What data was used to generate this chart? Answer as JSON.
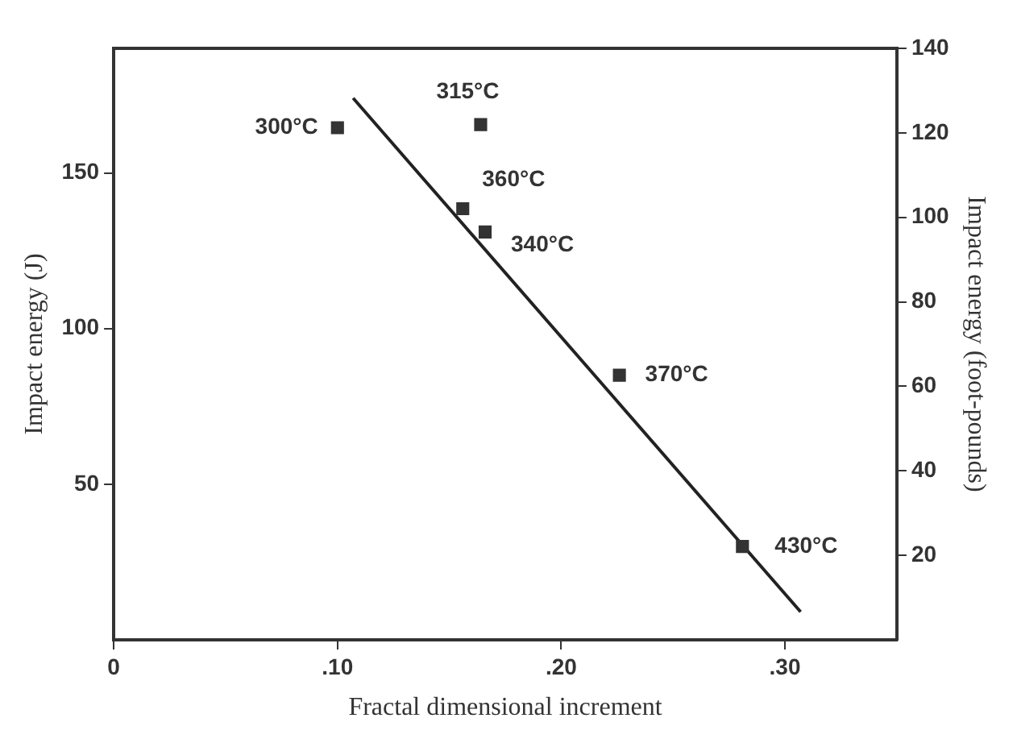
{
  "chart_data": {
    "type": "scatter",
    "xlabel": "Fractal dimensional increment",
    "ylabel": "Impact energy (J)",
    "y2label": "Impact energy (foot-pounds)",
    "series": [
      {
        "type": "scatter",
        "color": "#333333",
        "marker": "square",
        "x": [
          0.1,
          0.164,
          0.156,
          0.166,
          0.226,
          0.281
        ],
        "values": [
          164.5,
          165.5,
          138.5,
          131,
          85,
          30
        ]
      },
      {
        "type": "line",
        "color": "#222222",
        "marker": "none",
        "line_style": "solid",
        "x": [
          0.107,
          0.307
        ],
        "values": [
          174,
          9
        ]
      }
    ],
    "annotations": [
      {
        "text": "300°C",
        "x": 0.1,
        "y": 164.5
      },
      {
        "text": "315°C",
        "x": 0.164,
        "y": 165.5
      },
      {
        "text": "360°C",
        "x": 0.156,
        "y": 138.5
      },
      {
        "text": "340°C",
        "x": 0.166,
        "y": 131
      },
      {
        "text": "370°C",
        "x": 0.226,
        "y": 85
      },
      {
        "text": "430°C",
        "x": 0.281,
        "y": 30
      }
    ],
    "xlim": [
      0,
      0.35
    ],
    "xticks": [
      {
        "value": 0,
        "label": "0"
      },
      {
        "value": 0.1,
        "label": ".10"
      },
      {
        "value": 0.2,
        "label": ".20"
      },
      {
        "value": 0.3,
        "label": ".30"
      }
    ],
    "ylim": [
      0,
      190
    ],
    "yticks": [
      50,
      100,
      150
    ],
    "y2lim": [
      0,
      140
    ],
    "y2ticks": [
      20,
      40,
      60,
      80,
      100,
      120,
      140
    ],
    "grid": false,
    "legend": false
  }
}
